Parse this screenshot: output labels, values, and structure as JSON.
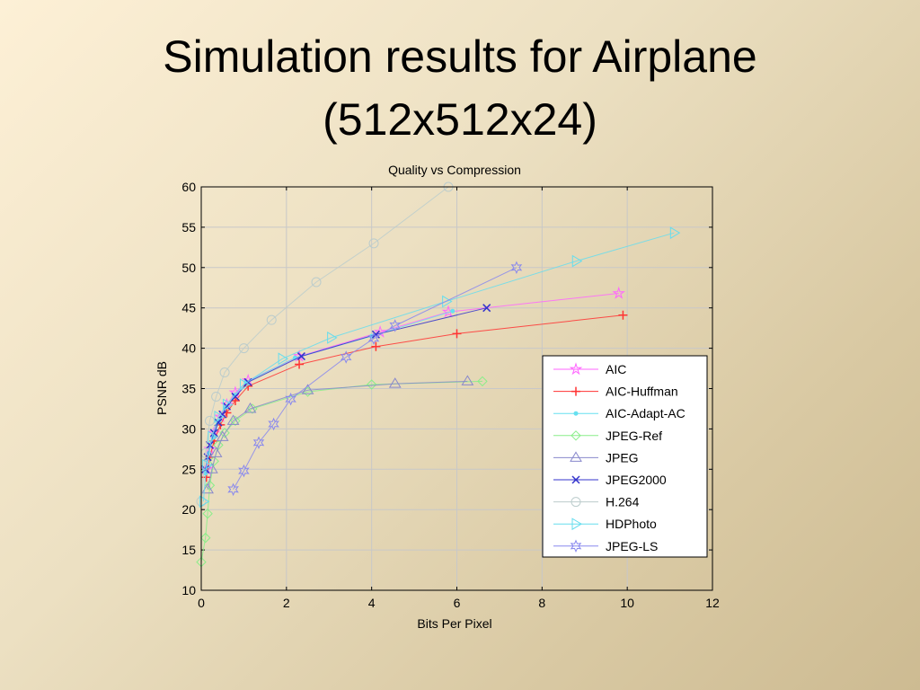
{
  "slide": {
    "title_line1": "Simulation results for Airplane",
    "title_line2": "(512x512x24)"
  },
  "chart_data": {
    "type": "line",
    "title": "Quality vs Compression",
    "xlabel": "Bits Per Pixel",
    "ylabel": "PSNR dB",
    "xlim": [
      0,
      12
    ],
    "ylim": [
      10,
      60
    ],
    "xticks": [
      0,
      2,
      4,
      6,
      8,
      10,
      12
    ],
    "yticks": [
      10,
      15,
      20,
      25,
      30,
      35,
      40,
      45,
      50,
      55,
      60
    ],
    "grid": true,
    "legend_position": "lower-right",
    "series": [
      {
        "name": "AIC",
        "color": "#ff66ff",
        "marker": "star",
        "x": [
          0.12,
          0.2,
          0.3,
          0.45,
          0.6,
          0.8,
          1.1,
          2.3,
          4.2,
          5.8,
          9.8
        ],
        "y": [
          25,
          27.5,
          29.5,
          31.5,
          33,
          34.5,
          36,
          39,
          42,
          44.5,
          46.8
        ]
      },
      {
        "name": "AIC-Huffman",
        "color": "#ff3333",
        "marker": "plus",
        "x": [
          0.12,
          0.2,
          0.3,
          0.45,
          0.6,
          0.8,
          1.1,
          2.3,
          4.1,
          6.0,
          9.9
        ],
        "y": [
          24,
          26.5,
          28.5,
          30.5,
          32,
          33.5,
          35.3,
          38,
          40.2,
          41.8,
          44.1
        ]
      },
      {
        "name": "AIC-Adapt-AC",
        "color": "#66e0f0",
        "marker": "point",
        "x": [
          0.1,
          0.18,
          0.28,
          0.42,
          0.58,
          0.78,
          1.05,
          2.2,
          4.0,
          5.9
        ],
        "y": [
          24.5,
          27,
          29,
          31,
          32.7,
          34.2,
          35.8,
          38.8,
          41.5,
          44.6
        ]
      },
      {
        "name": "JPEG-Ref",
        "color": "#88ee88",
        "marker": "diamond",
        "x": [
          0.0,
          0.1,
          0.15,
          0.2,
          0.3,
          0.4,
          0.55,
          0.8,
          1.2,
          2.5,
          4.0,
          6.6
        ],
        "y": [
          13.5,
          16.5,
          19.5,
          23,
          26,
          28,
          29.5,
          31,
          32.5,
          34.6,
          35.5,
          35.9
        ]
      },
      {
        "name": "JPEG",
        "color": "#8888cc",
        "marker": "triangle",
        "x": [
          0.15,
          0.25,
          0.35,
          0.5,
          0.75,
          1.15,
          2.5,
          4.55,
          6.25
        ],
        "y": [
          22.5,
          25,
          27,
          29,
          31,
          32.5,
          34.8,
          35.6,
          35.9
        ]
      },
      {
        "name": "JPEG2000",
        "color": "#3333cc",
        "marker": "x",
        "x": [
          0.1,
          0.15,
          0.2,
          0.3,
          0.4,
          0.5,
          0.6,
          0.8,
          1.1,
          2.35,
          4.1,
          6.7
        ],
        "y": [
          25,
          26.5,
          28,
          29.5,
          30.8,
          31.8,
          32.8,
          34,
          35.8,
          39,
          41.7,
          45
        ]
      },
      {
        "name": "H.264",
        "color": "#bbcccc",
        "marker": "circle",
        "x": [
          0.0,
          0.1,
          0.2,
          0.35,
          0.55,
          1.0,
          1.65,
          2.7,
          4.05,
          5.8
        ],
        "y": [
          21,
          27,
          31,
          34,
          37,
          40,
          43.5,
          48.2,
          53,
          60
        ]
      },
      {
        "name": "HDPhoto",
        "color": "#66ddee",
        "marker": "triangle-right",
        "x": [
          0.05,
          0.12,
          0.25,
          0.4,
          0.6,
          1.0,
          1.9,
          3.05,
          5.75,
          8.8,
          11.1
        ],
        "y": [
          21,
          25.5,
          29,
          31.5,
          33,
          35.5,
          38.7,
          41.3,
          45.8,
          50.8,
          54.3
        ]
      },
      {
        "name": "JPEG-LS",
        "color": "#8888ee",
        "marker": "hexagram",
        "x": [
          0.75,
          1.0,
          1.35,
          1.7,
          2.1,
          3.4,
          4.05,
          4.55,
          7.4
        ],
        "y": [
          22.5,
          24.8,
          28.3,
          30.6,
          33.7,
          38.9,
          41.2,
          42.8,
          50
        ]
      }
    ]
  }
}
